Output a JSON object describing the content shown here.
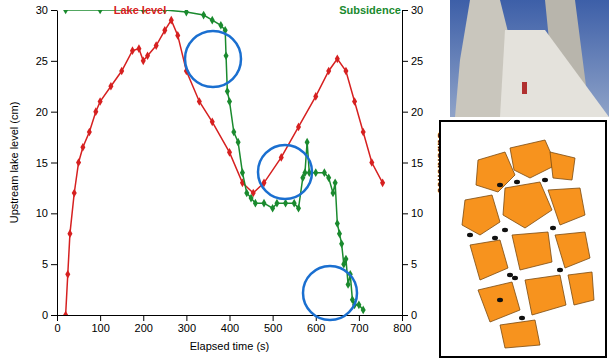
{
  "chart_data": {
    "type": "line",
    "xlabel": "Elapsed time (s)",
    "ylabel": "Upstream lake level (cm)",
    "y2label": "Subsidence",
    "xlim": [
      0,
      800
    ],
    "xticks": [
      0,
      100,
      200,
      300,
      400,
      500,
      600,
      700,
      800
    ],
    "ylim": [
      0,
      30
    ],
    "yticks": [
      0,
      5,
      10,
      15,
      20,
      25,
      30
    ],
    "y2lim": [
      0,
      30
    ],
    "y2ticks": [
      0,
      5,
      10,
      15,
      20,
      25,
      30
    ],
    "grid": false,
    "legend": "top",
    "marker": "diamond",
    "series": [
      {
        "name": "Lake level",
        "color": "#d62020",
        "axis": "y",
        "x": [
          20,
          25,
          30,
          40,
          50,
          60,
          75,
          90,
          100,
          125,
          150,
          175,
          190,
          200,
          210,
          230,
          250,
          265,
          280,
          300,
          330,
          360,
          400,
          430,
          455,
          480,
          520,
          560,
          600,
          630,
          650,
          670,
          690,
          710,
          730,
          755
        ],
        "values": [
          0,
          4,
          8,
          12,
          15,
          16.5,
          18,
          20,
          21,
          22.5,
          24,
          26,
          26.2,
          25,
          25.5,
          26.5,
          28,
          29,
          27.5,
          24,
          21,
          19,
          16,
          13,
          12,
          13,
          15.5,
          18.5,
          21.5,
          24,
          25.2,
          24,
          21,
          18,
          15,
          13
        ]
      },
      {
        "name": "Subsidence",
        "color": "#1a8a2e",
        "axis": "y2",
        "x": [
          20,
          100,
          200,
          250,
          300,
          340,
          360,
          380,
          390,
          392,
          395,
          400,
          410,
          420,
          430,
          440,
          450,
          460,
          480,
          500,
          510,
          530,
          550,
          560,
          570,
          575,
          580,
          585,
          600,
          620,
          630,
          640,
          645,
          650,
          655,
          660,
          665,
          670,
          675,
          680,
          685,
          690,
          700,
          710
        ],
        "values": [
          30,
          30,
          30,
          30,
          29.8,
          29.5,
          29,
          28.5,
          28,
          25.5,
          22,
          21,
          18,
          17,
          14,
          12,
          11.5,
          11,
          11,
          10.5,
          11,
          11,
          11,
          10.5,
          13.5,
          14,
          17,
          14,
          14,
          14,
          13.5,
          12,
          13,
          9,
          8,
          7,
          5,
          5.5,
          3,
          4,
          1.5,
          1,
          1,
          0.5
        ]
      }
    ]
  }
}
